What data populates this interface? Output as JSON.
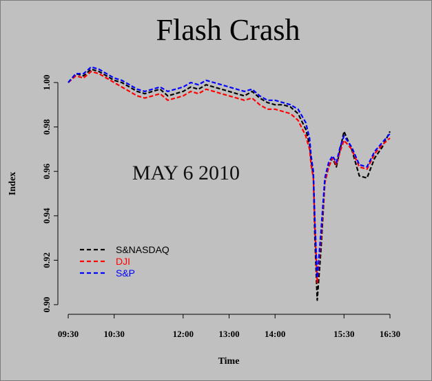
{
  "colors": {
    "background": "#c0c0c0",
    "snasdaq": "#000000",
    "dji": "#ff0000",
    "sp": "#0000ff"
  },
  "chart_data": {
    "type": "line",
    "title": "Flash Crash",
    "annotation": "MAY 6 2010",
    "xlabel": "Time",
    "ylabel": "Index",
    "x_unit": "time of day",
    "xlim": [
      "09:30",
      "16:30"
    ],
    "ylim": [
      0.9,
      1.0
    ],
    "x_ticks": [
      "09:30",
      "10:30",
      "12:00",
      "13:00",
      "14:00",
      "15:30",
      "16:30"
    ],
    "y_ticks": [
      "0.90",
      "0.92",
      "0.94",
      "0.96",
      "0.98",
      "1.00"
    ],
    "grid": false,
    "legend_position": "bottom-left",
    "line_style": "dashed",
    "x": [
      "09:30",
      "09:40",
      "09:50",
      "10:00",
      "10:10",
      "10:20",
      "10:30",
      "10:40",
      "10:50",
      "11:00",
      "11:10",
      "11:20",
      "11:30",
      "11:40",
      "11:50",
      "12:00",
      "12:10",
      "12:20",
      "12:30",
      "12:40",
      "12:50",
      "13:00",
      "13:10",
      "13:20",
      "13:30",
      "13:40",
      "13:50",
      "14:00",
      "14:10",
      "14:20",
      "14:30",
      "14:40",
      "14:45",
      "14:47",
      "14:50",
      "14:52",
      "14:55",
      "15:00",
      "15:05",
      "15:10",
      "15:15",
      "15:20",
      "15:25",
      "15:30",
      "15:40",
      "15:50",
      "16:00",
      "16:10",
      "16:20",
      "16:30"
    ],
    "series": [
      {
        "name": "S&NASDAQ",
        "color": "#000000",
        "values": [
          1.0,
          1.004,
          1.003,
          1.006,
          1.005,
          1.003,
          1.001,
          1.0,
          0.998,
          0.996,
          0.995,
          0.996,
          0.997,
          0.994,
          0.995,
          0.996,
          0.998,
          0.997,
          0.999,
          0.998,
          0.997,
          0.996,
          0.995,
          0.994,
          0.996,
          0.993,
          0.991,
          0.99,
          0.99,
          0.989,
          0.986,
          0.979,
          0.972,
          0.965,
          0.958,
          0.93,
          0.902,
          0.925,
          0.955,
          0.962,
          0.966,
          0.962,
          0.97,
          0.978,
          0.97,
          0.958,
          0.957,
          0.966,
          0.971,
          0.978
        ]
      },
      {
        "name": "DJI",
        "color": "#ff0000",
        "values": [
          1.0,
          1.003,
          1.002,
          1.005,
          1.004,
          1.002,
          1.0,
          0.998,
          0.996,
          0.994,
          0.993,
          0.994,
          0.995,
          0.992,
          0.993,
          0.994,
          0.996,
          0.995,
          0.997,
          0.996,
          0.995,
          0.994,
          0.993,
          0.992,
          0.993,
          0.99,
          0.988,
          0.988,
          0.987,
          0.986,
          0.983,
          0.976,
          0.97,
          0.963,
          0.957,
          0.935,
          0.91,
          0.93,
          0.955,
          0.962,
          0.966,
          0.963,
          0.969,
          0.974,
          0.97,
          0.962,
          0.961,
          0.968,
          0.972,
          0.975
        ]
      },
      {
        "name": "S&P",
        "color": "#0000ff",
        "values": [
          1.0,
          1.004,
          1.004,
          1.007,
          1.006,
          1.004,
          1.002,
          1.001,
          0.999,
          0.997,
          0.996,
          0.997,
          0.998,
          0.996,
          0.997,
          0.998,
          1.0,
          0.999,
          1.001,
          1.0,
          0.999,
          0.998,
          0.997,
          0.996,
          0.997,
          0.994,
          0.992,
          0.992,
          0.991,
          0.99,
          0.988,
          0.982,
          0.975,
          0.967,
          0.96,
          0.938,
          0.912,
          0.933,
          0.957,
          0.964,
          0.967,
          0.964,
          0.971,
          0.976,
          0.971,
          0.963,
          0.962,
          0.969,
          0.973,
          0.977
        ]
      }
    ]
  }
}
